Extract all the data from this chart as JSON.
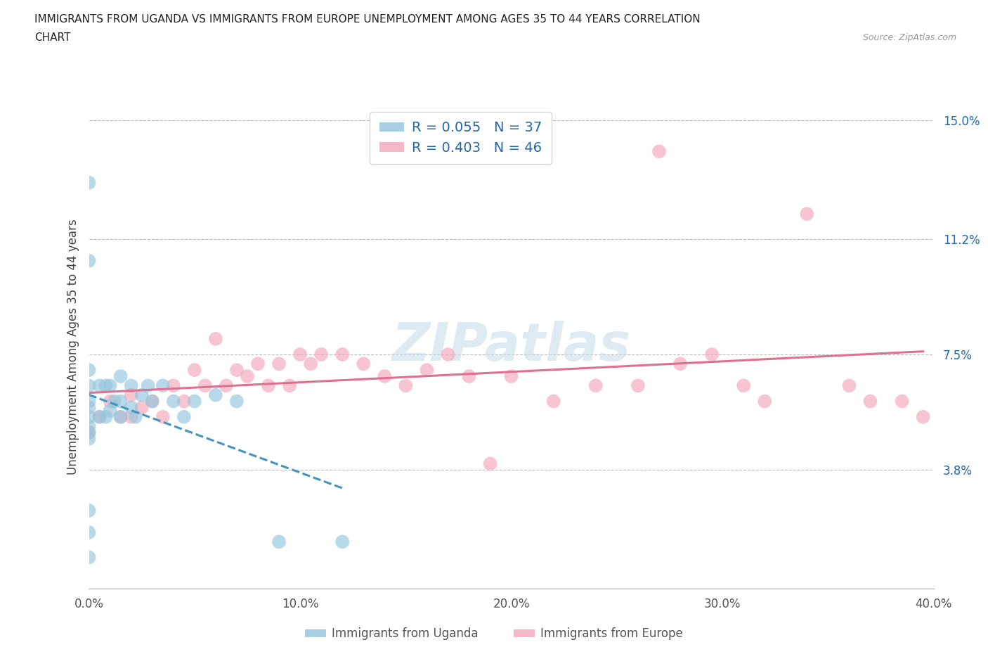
{
  "title_line1": "IMMIGRANTS FROM UGANDA VS IMMIGRANTS FROM EUROPE UNEMPLOYMENT AMONG AGES 35 TO 44 YEARS CORRELATION",
  "title_line2": "CHART",
  "source_text": "Source: ZipAtlas.com",
  "ylabel": "Unemployment Among Ages 35 to 44 years",
  "xlim": [
    0.0,
    0.4
  ],
  "ylim": [
    0.0,
    0.155
  ],
  "xticks": [
    0.0,
    0.1,
    0.2,
    0.3,
    0.4
  ],
  "xticklabels": [
    "0.0%",
    "10.0%",
    "20.0%",
    "30.0%",
    "40.0%"
  ],
  "yticks_right": [
    0.038,
    0.075,
    0.112,
    0.15
  ],
  "ytick_right_labels": [
    "3.8%",
    "7.5%",
    "11.2%",
    "15.0%"
  ],
  "uganda_color": "#92c5de",
  "europe_color": "#f4a6bb",
  "uganda_line_color": "#4393c3",
  "europe_line_color": "#e07090",
  "R_uganda": 0.055,
  "N_uganda": 37,
  "R_europe": 0.403,
  "N_europe": 46,
  "legend_label_color": "#2166ac",
  "background_color": "#ffffff",
  "watermark_text": "ZIPatlas",
  "uganda_scatter_x": [
    0.0,
    0.0,
    0.0,
    0.0,
    0.0,
    0.0,
    0.0,
    0.0,
    0.0,
    0.0,
    0.0,
    0.0,
    0.0,
    0.005,
    0.005,
    0.008,
    0.008,
    0.01,
    0.01,
    0.012,
    0.015,
    0.015,
    0.015,
    0.02,
    0.02,
    0.022,
    0.025,
    0.028,
    0.03,
    0.035,
    0.04,
    0.045,
    0.05,
    0.06,
    0.07,
    0.09,
    0.12
  ],
  "uganda_scatter_y": [
    0.13,
    0.105,
    0.07,
    0.065,
    0.06,
    0.058,
    0.055,
    0.052,
    0.05,
    0.048,
    0.025,
    0.018,
    0.01,
    0.065,
    0.055,
    0.065,
    0.055,
    0.065,
    0.057,
    0.06,
    0.068,
    0.06,
    0.055,
    0.065,
    0.058,
    0.055,
    0.062,
    0.065,
    0.06,
    0.065,
    0.06,
    0.055,
    0.06,
    0.062,
    0.06,
    0.015,
    0.015
  ],
  "europe_scatter_x": [
    0.0,
    0.005,
    0.01,
    0.015,
    0.02,
    0.02,
    0.025,
    0.03,
    0.035,
    0.04,
    0.045,
    0.05,
    0.055,
    0.06,
    0.065,
    0.07,
    0.075,
    0.08,
    0.085,
    0.09,
    0.095,
    0.1,
    0.105,
    0.11,
    0.12,
    0.13,
    0.14,
    0.15,
    0.16,
    0.17,
    0.18,
    0.19,
    0.2,
    0.22,
    0.24,
    0.26,
    0.27,
    0.28,
    0.295,
    0.31,
    0.32,
    0.34,
    0.36,
    0.37,
    0.385,
    0.395
  ],
  "europe_scatter_y": [
    0.05,
    0.055,
    0.06,
    0.055,
    0.062,
    0.055,
    0.058,
    0.06,
    0.055,
    0.065,
    0.06,
    0.07,
    0.065,
    0.08,
    0.065,
    0.07,
    0.068,
    0.072,
    0.065,
    0.072,
    0.065,
    0.075,
    0.072,
    0.075,
    0.075,
    0.072,
    0.068,
    0.065,
    0.07,
    0.075,
    0.068,
    0.04,
    0.068,
    0.06,
    0.065,
    0.065,
    0.14,
    0.072,
    0.075,
    0.065,
    0.06,
    0.12,
    0.065,
    0.06,
    0.06,
    0.055
  ]
}
